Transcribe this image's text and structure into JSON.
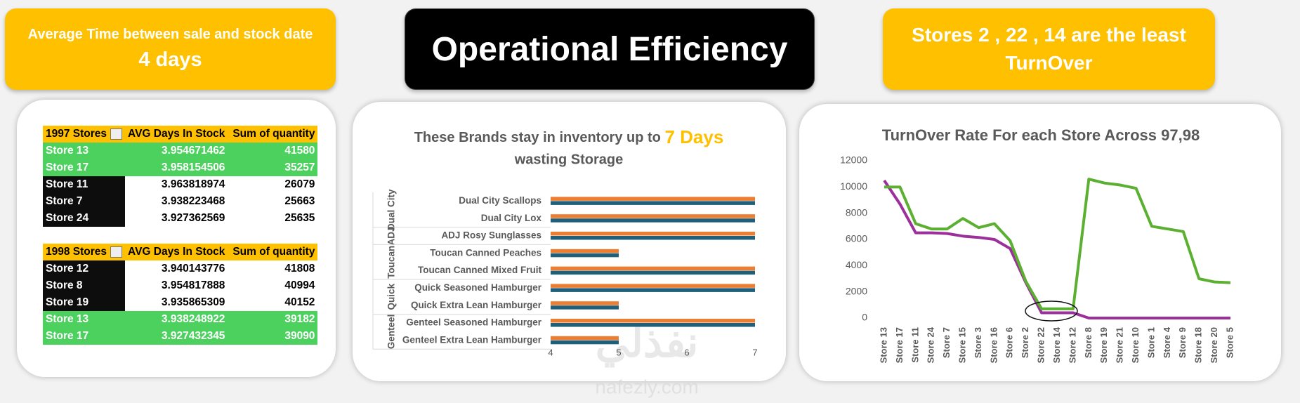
{
  "header": {
    "left_card": {
      "label": "Average Time between sale and stock date",
      "value": "4 days"
    },
    "title": "Operational Efficiency",
    "right_card": "Stores 2 , 22 , 14 are the least TurnOver"
  },
  "tables": [
    {
      "title": "1997 Stores",
      "columns": [
        "AVG Days In Stock",
        "Sum of quantity"
      ],
      "rows": [
        [
          "Store 13",
          3.954671462,
          41580
        ],
        [
          "Store 17",
          3.958154506,
          35257
        ],
        [
          "Store 11",
          3.963818974,
          26079
        ],
        [
          "Store 7",
          3.938223468,
          25663
        ],
        [
          "Store 24",
          3.927362569,
          25635
        ]
      ],
      "row_colors": [
        "#4cd15f",
        "#4cd15f",
        "#0d0d0d",
        "#0d0d0d",
        "#0d0d0d"
      ]
    },
    {
      "title": "1998 Stores",
      "columns": [
        "AVG Days In Stock",
        "Sum of quantity"
      ],
      "rows": [
        [
          "Store 12",
          3.940143776,
          41808
        ],
        [
          "Store 8",
          3.954817888,
          40994
        ],
        [
          "Store 19",
          3.935865309,
          40152
        ],
        [
          "Store 13",
          3.938248922,
          39182
        ],
        [
          "Store 17",
          3.927432345,
          39090
        ]
      ],
      "row_colors": [
        "#0d0d0d",
        "#0d0d0d",
        "#0d0d0d",
        "#4cd15f",
        "#4cd15f"
      ]
    }
  ],
  "chart_data": [
    {
      "type": "hbar",
      "title": "These Brands stay in inventory up to",
      "title_highlight": "7 Days",
      "subtitle": "wasting Storage",
      "groups": [
        {
          "label": "Dual City",
          "categories": [
            "Dual City Scallops",
            "Dual City Lox"
          ]
        },
        {
          "label": "ADJ",
          "categories": [
            "ADJ Rosy Sunglasses"
          ]
        },
        {
          "label": "Toucan",
          "categories": [
            "Toucan Canned Peaches",
            "Toucan Canned Mixed Fruit"
          ]
        },
        {
          "label": "Quick",
          "categories": [
            "Quick Seasoned Hamburger",
            "Quick Extra Lean Hamburger"
          ]
        },
        {
          "label": "Genteel",
          "categories": [
            "Genteel Seasoned Hamburger",
            "Genteel Extra Lean Hamburger"
          ]
        }
      ],
      "series": [
        {
          "color": "#ed7d31",
          "values": [
            7,
            7,
            7,
            5,
            7,
            7,
            5,
            7,
            5
          ]
        },
        {
          "color": "#1f5f7a",
          "values": [
            7,
            7,
            7,
            5,
            7,
            7,
            5,
            7,
            5
          ]
        }
      ],
      "xlim": [
        4,
        7
      ],
      "xticks": [
        4,
        5,
        6,
        7
      ],
      "grid": false
    },
    {
      "type": "line",
      "title": "TurnOver Rate For each Store Across 97,98",
      "categories": [
        "Store 13",
        "Store 17",
        "Store 11",
        "Store 24",
        "Store 7",
        "Store 15",
        "Store 3",
        "Store 16",
        "Store 6",
        "Store 2",
        "Store 22",
        "Store 14",
        "Store 12",
        "Store 8",
        "Store 19",
        "Store 21",
        "Store 10",
        "Store 1",
        "Store 4",
        "Store 9",
        "Store 18",
        "Store 20",
        "Store 5"
      ],
      "series": [
        {
          "color": "#9b2f9b",
          "values": [
            10500,
            8700,
            6500,
            6500,
            6450,
            6250,
            6150,
            6000,
            5300,
            2700,
            400,
            400,
            400,
            0,
            0,
            0,
            0,
            0,
            0,
            0,
            0,
            0,
            0
          ]
        },
        {
          "color": "#5bb031",
          "values": [
            10000,
            10000,
            7200,
            6800,
            6800,
            7600,
            6900,
            7200,
            5900,
            2800,
            700,
            700,
            700,
            10600,
            10300,
            10150,
            9900,
            7000,
            6800,
            6600,
            3000,
            2750,
            2700
          ]
        }
      ],
      "ylim": [
        0,
        12000
      ],
      "yticks": [
        0,
        2000,
        4000,
        6000,
        8000,
        10000,
        12000
      ],
      "grid": false
    }
  ],
  "watermark": {
    "arabic": "نفذلي",
    "latin": "nafezly.com"
  }
}
